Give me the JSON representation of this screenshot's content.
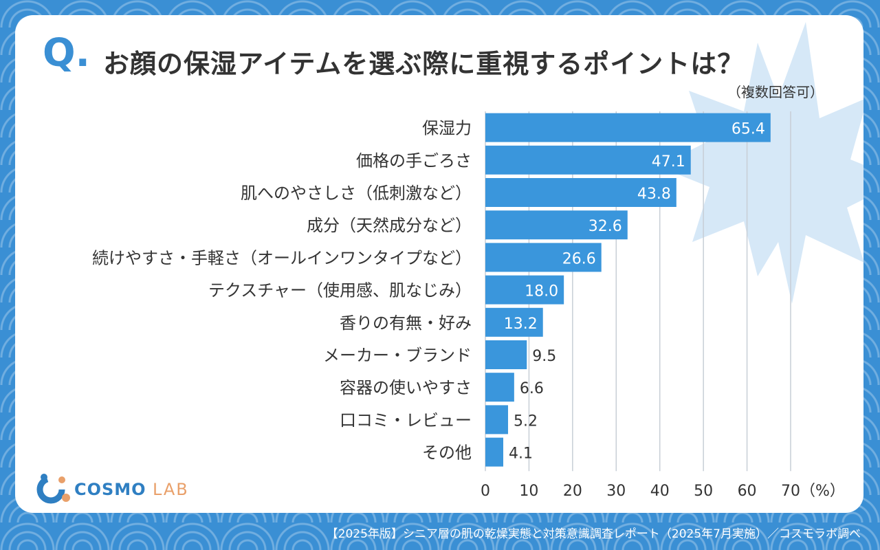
{
  "header": {
    "q_mark": "Q.",
    "title": "お顔の保湿アイテムを選ぶ際に重視するポイントは？",
    "note": "（複数回答可）"
  },
  "brand": {
    "name_main": "COSMO",
    "name_sub": "LAB"
  },
  "footer": {
    "source": "【2025年版】シニア層の肌の乾燥実態と対策意識調査レポート（2025年7月実施）／コスモラボ調べ"
  },
  "colors": {
    "bar": "#3a96dc",
    "grid": "#c7ced6",
    "text": "#333333",
    "accent": "#3a8fd4"
  },
  "chart_data": {
    "type": "bar",
    "orientation": "horizontal",
    "categories": [
      "保湿力",
      "価格の手ごろさ",
      "肌へのやさしさ（低刺激など）",
      "成分（天然成分など）",
      "続けやすさ・手軽さ（オールインワンタイプなど）",
      "テクスチャー（使用感、肌なじみ）",
      "香りの有無・好み",
      "メーカー・ブランド",
      "容器の使いやすさ",
      "口コミ・レビュー",
      "その他"
    ],
    "values": [
      65.4,
      47.1,
      43.8,
      32.6,
      26.6,
      18.0,
      13.2,
      9.5,
      6.6,
      5.2,
      4.1
    ],
    "value_labels": [
      "65.4",
      "47.1",
      "43.8",
      "32.6",
      "26.6",
      "18.0",
      "13.2",
      "9.5",
      "6.6",
      "5.2",
      "4.1"
    ],
    "xlim": [
      0,
      70
    ],
    "xticks": [
      "0",
      "10",
      "20",
      "30",
      "40",
      "50",
      "60",
      "70"
    ],
    "unit_label": "（%）",
    "grid": true
  }
}
